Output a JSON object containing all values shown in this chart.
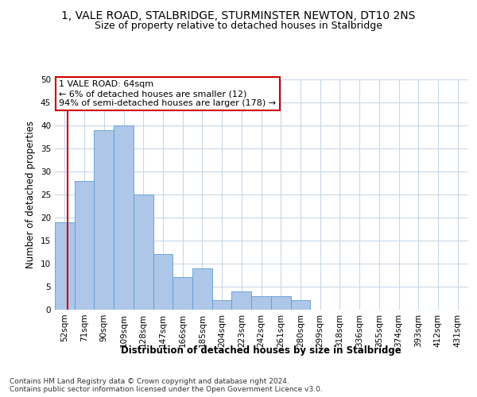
{
  "title": "1, VALE ROAD, STALBRIDGE, STURMINSTER NEWTON, DT10 2NS",
  "subtitle": "Size of property relative to detached houses in Stalbridge",
  "xlabel": "Distribution of detached houses by size in Stalbridge",
  "ylabel": "Number of detached properties",
  "categories": [
    "52sqm",
    "71sqm",
    "90sqm",
    "109sqm",
    "128sqm",
    "147sqm",
    "166sqm",
    "185sqm",
    "204sqm",
    "223sqm",
    "242sqm",
    "261sqm",
    "280sqm",
    "299sqm",
    "318sqm",
    "336sqm",
    "355sqm",
    "374sqm",
    "393sqm",
    "412sqm",
    "431sqm"
  ],
  "values": [
    19,
    28,
    39,
    40,
    25,
    12,
    7,
    9,
    2,
    4,
    3,
    3,
    2,
    0,
    0,
    0,
    0,
    0,
    0,
    0,
    0
  ],
  "bar_color": "#aec6e8",
  "bar_edge_color": "#5a9fd4",
  "annotation_text": "1 VALE ROAD: 64sqm\n← 6% of detached houses are smaller (12)\n94% of semi-detached houses are larger (178) →",
  "annotation_box_color": "#ffffff",
  "annotation_box_edge_color": "#cc0000",
  "vline_color": "#cc0000",
  "ylim": [
    0,
    50
  ],
  "yticks": [
    0,
    5,
    10,
    15,
    20,
    25,
    30,
    35,
    40,
    45,
    50
  ],
  "footer": "Contains HM Land Registry data © Crown copyright and database right 2024.\nContains public sector information licensed under the Open Government Licence v3.0.",
  "bg_color": "#ffffff",
  "grid_color": "#c8d8e8",
  "title_fontsize": 10,
  "subtitle_fontsize": 9,
  "axis_label_fontsize": 8.5,
  "tick_fontsize": 7.5,
  "annotation_fontsize": 8,
  "footer_fontsize": 6.5
}
